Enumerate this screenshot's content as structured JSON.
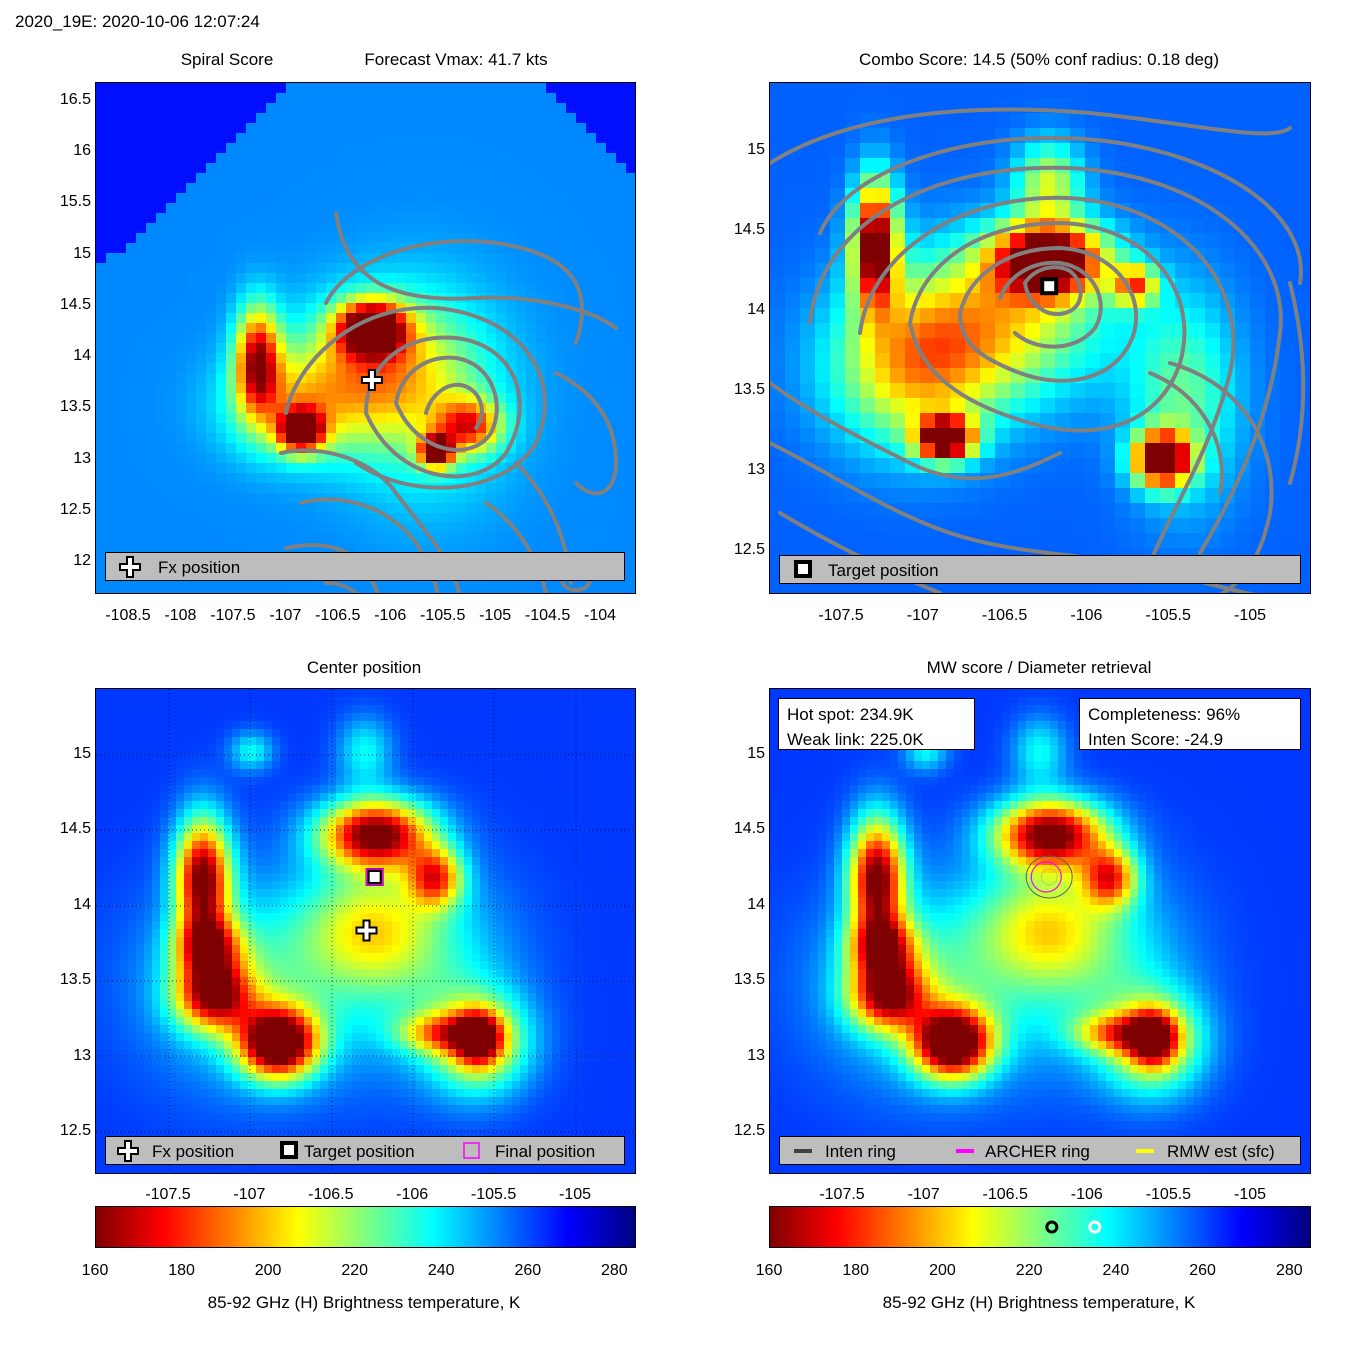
{
  "header": {
    "title": "2020_19E: 2020-10-06 12:07:24"
  },
  "colors": {
    "jet": [
      "#7f0000",
      "#ff0000",
      "#ff7f00",
      "#ffff00",
      "#7fff7f",
      "#00ffff",
      "#007fff",
      "#0000ff",
      "#00007f"
    ],
    "contour": "#808080",
    "legend_bg": "#bdbdbd",
    "archer": "#ff00ff",
    "rmw": "#ffff00"
  },
  "panels": {
    "spiral": {
      "title_left": "Spiral Score",
      "title_right": "Forecast Vmax: 41.7 kts",
      "yticks": [
        "16.5",
        "16",
        "15.5",
        "15",
        "14.5",
        "14",
        "13.5",
        "13",
        "12.5",
        "12"
      ],
      "xticks": [
        "-108.5",
        "-108",
        "-107.5",
        "-107",
        "-106.5",
        "-106",
        "-105.5",
        "-105",
        "-104.5",
        "-104"
      ],
      "legend": {
        "fx": "Fx position"
      },
      "markers": {
        "fx": {
          "lon": -106.2,
          "lat": 13.8
        }
      }
    },
    "combo": {
      "title": "Combo Score: 14.5  (50% conf radius: 0.18 deg)",
      "yticks": [
        "15",
        "14.5",
        "14",
        "13.5",
        "13",
        "12.5"
      ],
      "xticks": [
        "-107.5",
        "-107",
        "-106.5",
        "-106",
        "-105.5",
        "-105"
      ],
      "legend": {
        "target": "Target position"
      },
      "markers": {
        "target": {
          "lon": -106.25,
          "lat": 14.18
        }
      }
    },
    "center": {
      "title": "Center position",
      "yticks": [
        "15",
        "14.5",
        "14",
        "13.5",
        "13",
        "12.5"
      ],
      "xticks": [
        "-107.5",
        "-107",
        "-106.5",
        "-106",
        "-105.5",
        "-105"
      ],
      "legend": {
        "fx": "Fx position",
        "target": "Target position",
        "final": "Final position"
      },
      "markers": {
        "fx": {
          "lon": -106.3,
          "lat": 13.82
        },
        "target": {
          "lon": -106.25,
          "lat": 14.17
        }
      }
    },
    "mw": {
      "title": "MW score / Diameter retrieval",
      "yticks": [
        "15",
        "14.5",
        "14",
        "13.5",
        "13",
        "12.5"
      ],
      "xticks": [
        "-107.5",
        "-107",
        "-106.5",
        "-106",
        "-105.5",
        "-105"
      ],
      "info_left": {
        "hot": "Hot spot: 234.9K",
        "weak": "Weak link: 225.0K"
      },
      "info_right": {
        "completeness": "Completeness: 96%",
        "inten": "Inten Score: -24.9"
      },
      "legend": {
        "inten": "Inten ring",
        "archer": "ARCHER ring",
        "rmw": "RMW est (sfc)"
      }
    }
  },
  "colorbar": {
    "ticks": [
      "160",
      "180",
      "200",
      "220",
      "240",
      "260",
      "280"
    ],
    "range": [
      160,
      285
    ],
    "label": "85-92 GHz (H) Brightness temperature, K",
    "mw_markers": {
      "weak_link_K": 225.0,
      "hot_spot_K": 234.9
    }
  },
  "chart_data": [
    {
      "type": "heatmap",
      "title": "Spiral Score",
      "subtitle": "Forecast Vmax: 41.7 kts",
      "xlabel": "",
      "ylabel": "",
      "xlim": [
        -108.75,
        -103.75
      ],
      "ylim": [
        11.7,
        16.7
      ],
      "contours": true,
      "legend": [
        "Fx position"
      ]
    },
    {
      "type": "heatmap",
      "title": "Combo Score: 14.5  (50% conf radius: 0.18 deg)",
      "xlabel": "",
      "ylabel": "",
      "xlim": [
        -107.95,
        -104.65
      ],
      "ylim": [
        12.25,
        15.45
      ],
      "contours": true,
      "legend": [
        "Target position"
      ]
    },
    {
      "type": "heatmap",
      "title": "Center position",
      "xlabel": "",
      "ylabel": "",
      "xlim": [
        -107.95,
        -104.65
      ],
      "ylim": [
        12.22,
        15.4
      ],
      "grid": true,
      "legend": [
        "Fx position",
        "Target position",
        "Final position"
      ]
    },
    {
      "type": "heatmap",
      "title": "MW score / Diameter retrieval",
      "xlabel": "",
      "ylabel": "",
      "xlim": [
        -107.95,
        -104.65
      ],
      "ylim": [
        12.22,
        15.4
      ],
      "legend": [
        "Inten ring",
        "ARCHER ring",
        "RMW est (sfc)"
      ],
      "colorbar": {
        "label": "85-92 GHz (H) Brightness temperature, K",
        "range": [
          160,
          285
        ]
      }
    }
  ]
}
